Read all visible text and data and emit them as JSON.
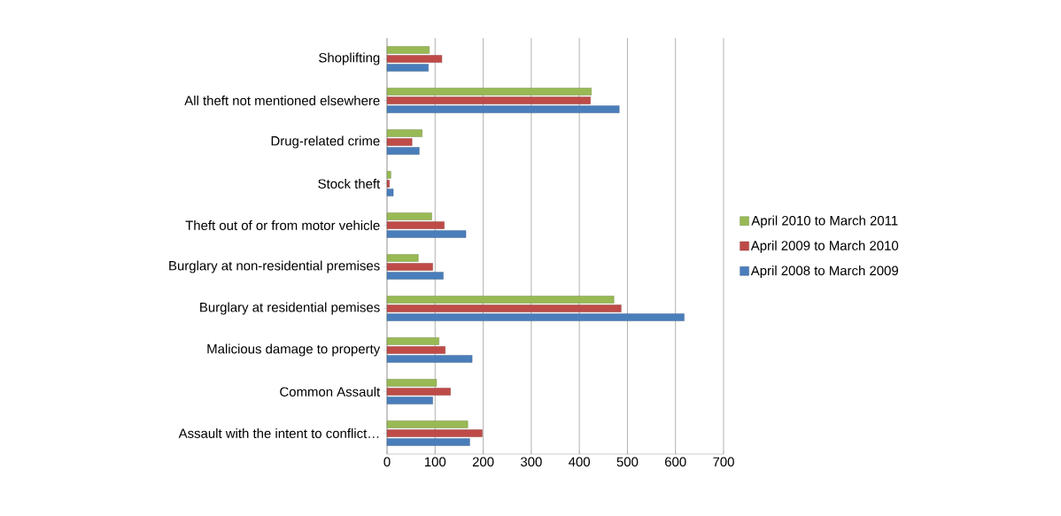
{
  "chart_data": {
    "type": "bar",
    "orientation": "horizontal",
    "categories": [
      "Shoplifting",
      "All theft not mentioned elsewhere",
      "Drug-related crime",
      "Stock theft",
      "Theft out of or from motor vehicle",
      "Burglary at non-residential premises",
      "Burglary at residential pemises",
      "Malicious damage to property",
      "Common Assault",
      "Assault with the intent to conflict…"
    ],
    "series": [
      {
        "name": "April 2008 to March 2009",
        "color": "#4a7ebb",
        "values": [
          86,
          483,
          67,
          13,
          164,
          117,
          618,
          177,
          95,
          172
        ]
      },
      {
        "name": "April 2009 to March 2010",
        "color": "#be4b48",
        "values": [
          114,
          423,
          52,
          5,
          119,
          95,
          487,
          121,
          132,
          198
        ]
      },
      {
        "name": "April 2010 to March 2011",
        "color": "#98b954",
        "values": [
          88,
          425,
          73,
          8,
          93,
          65,
          472,
          108,
          103,
          168
        ]
      }
    ],
    "xlim": [
      0,
      700
    ],
    "xticks": [
      0,
      100,
      200,
      300,
      400,
      500,
      600,
      700
    ],
    "grid": "x",
    "legend": "right"
  }
}
